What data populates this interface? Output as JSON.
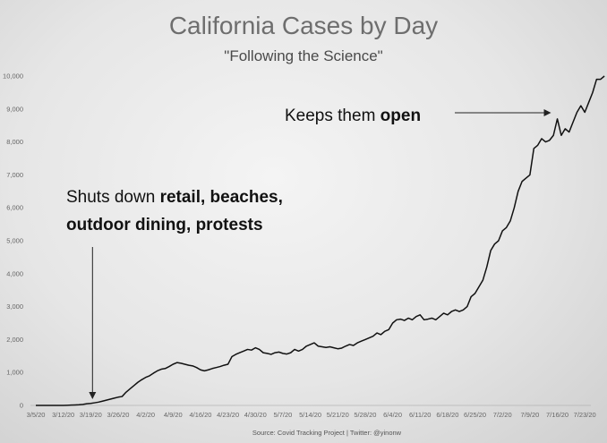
{
  "chart_data": {
    "type": "line",
    "title": "California Cases by Day",
    "subtitle": "\"Following the Science\"",
    "source": "Source: Covid Tracking Project | Twitter: @yinonw",
    "ylim": [
      0,
      10000
    ],
    "y_ticks": [
      "0",
      "1,000",
      "2,000",
      "3,000",
      "4,000",
      "5,000",
      "6,000",
      "7,000",
      "8,000",
      "9,000",
      "10,000"
    ],
    "x_tick_labels": [
      "3/5/20",
      "3/12/20",
      "3/19/20",
      "3/26/20",
      "4/2/20",
      "4/9/20",
      "4/16/20",
      "4/23/20",
      "4/30/20",
      "5/7/20",
      "5/14/20",
      "5/21/20",
      "5/28/20",
      "6/4/20",
      "6/11/20",
      "6/18/20",
      "6/25/20",
      "7/2/20",
      "7/9/20",
      "7/16/20",
      "7/23/20"
    ],
    "x_start": "3/5/20",
    "grid": false,
    "legend": "none",
    "line_color": "#111111",
    "series": [
      {
        "values": [
          0,
          0,
          0,
          0,
          0,
          0,
          0,
          0,
          5,
          10,
          15,
          20,
          30,
          50,
          60,
          80,
          100,
          130,
          160,
          190,
          220,
          250,
          270,
          400,
          500,
          600,
          700,
          780,
          850,
          900,
          980,
          1050,
          1100,
          1120,
          1180,
          1250,
          1300,
          1280,
          1250,
          1220,
          1200,
          1150,
          1080,
          1050,
          1080,
          1120,
          1150,
          1180,
          1220,
          1250,
          1480,
          1550,
          1600,
          1650,
          1700,
          1680,
          1750,
          1700,
          1600,
          1580,
          1550,
          1600,
          1620,
          1580,
          1560,
          1600,
          1700,
          1650,
          1700,
          1800,
          1850,
          1900,
          1800,
          1780,
          1760,
          1780,
          1750,
          1720,
          1740,
          1800,
          1850,
          1820,
          1900,
          1950,
          2000,
          2050,
          2100,
          2200,
          2150,
          2250,
          2300,
          2500,
          2600,
          2620,
          2580,
          2650,
          2600,
          2700,
          2750,
          2600,
          2620,
          2650,
          2600,
          2700,
          2800,
          2750,
          2850,
          2900,
          2850,
          2900,
          3000,
          3300,
          3400,
          3600,
          3800,
          4200,
          4700,
          4900,
          5000,
          5300,
          5400,
          5600,
          6000,
          6500,
          6800,
          6900,
          7000,
          7800,
          7900,
          8100,
          8000,
          8050,
          8200,
          8700,
          8200,
          8400,
          8300,
          8600,
          8900,
          9100,
          8900,
          9200,
          9500,
          9900,
          9900,
          10000
        ]
      }
    ],
    "annotations": [
      {
        "text_lines": [
          [
            {
              "text": "Shuts down ",
              "bold": false
            },
            {
              "text": "retail, beaches,",
              "bold": true
            }
          ],
          [
            {
              "text": "outdoor dining, protests",
              "bold": true
            }
          ]
        ],
        "arrow_to_date": "3/19/20"
      },
      {
        "text_lines": [
          [
            {
              "text": "Keeps them ",
              "bold": false
            },
            {
              "text": "open",
              "bold": true
            }
          ]
        ],
        "arrow_to_date": "7/16/20"
      }
    ]
  }
}
